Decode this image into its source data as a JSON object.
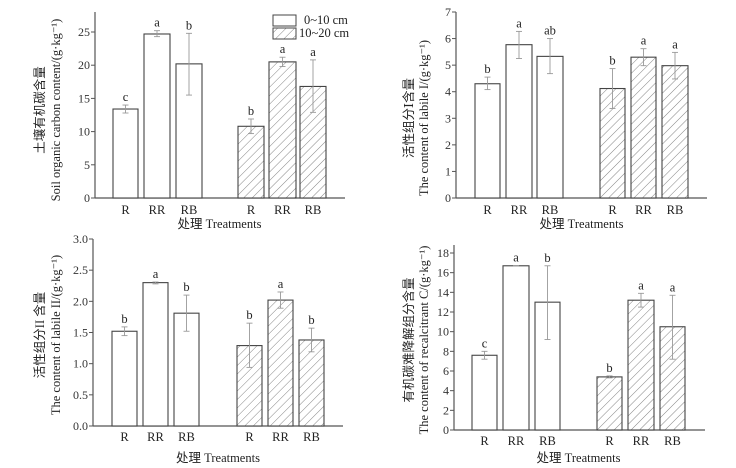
{
  "legend": {
    "items": [
      {
        "label": "0~10 cm",
        "pattern": "solid"
      },
      {
        "label": "10~20 cm",
        "pattern": "hatched"
      }
    ],
    "placement": "top-right of first chart"
  },
  "chart_data": [
    {
      "type": "bar",
      "title": "",
      "ylabel_cn": "土壤有机碳含量",
      "ylabel": "Soil organic carbon content/(g·kg⁻¹)",
      "xlabel": "处理 Treatments",
      "categories": [
        "R",
        "RR",
        "RB"
      ],
      "ylim": [
        0,
        28
      ],
      "yticks": [
        0,
        5,
        10,
        15,
        20,
        25
      ],
      "ytick_labels": [
        "0",
        "5",
        "10",
        "15",
        "20",
        "25"
      ],
      "series": [
        {
          "name": "0~10 cm",
          "values": [
            13.4,
            24.7,
            20.2
          ],
          "err_low": [
            12.8,
            24.3,
            15.5
          ],
          "err_high": [
            14.0,
            25.2,
            24.8
          ],
          "sig": [
            "c",
            "a",
            "b"
          ]
        },
        {
          "name": "10~20 cm",
          "values": [
            10.8,
            20.5,
            16.8
          ],
          "err_low": [
            9.7,
            19.8,
            12.9
          ],
          "err_high": [
            11.9,
            21.2,
            20.8
          ],
          "sig": [
            "b",
            "a",
            "a"
          ]
        }
      ],
      "grid": false
    },
    {
      "type": "bar",
      "title": "",
      "ylabel_cn": "活性组分Ⅰ含量",
      "ylabel": "The content of labile I/(g·kg⁻¹)",
      "xlabel": "处理 Treatments",
      "categories": [
        "R",
        "RR",
        "RB"
      ],
      "ylim": [
        0,
        7
      ],
      "yticks": [
        0,
        1,
        2,
        3,
        4,
        5,
        6,
        7
      ],
      "ytick_labels": [
        "0",
        "1",
        "2",
        "3",
        "4",
        "5",
        "6",
        "7"
      ],
      "series": [
        {
          "name": "0~10 cm",
          "values": [
            4.3,
            5.77,
            5.33
          ],
          "err_low": [
            4.08,
            5.25,
            4.68
          ],
          "err_high": [
            4.55,
            6.27,
            6.0
          ],
          "sig": [
            "b",
            "a",
            "ab"
          ]
        },
        {
          "name": "10~20 cm",
          "values": [
            4.12,
            5.3,
            4.98
          ],
          "err_low": [
            3.37,
            4.98,
            4.48
          ],
          "err_high": [
            4.87,
            5.62,
            5.48
          ],
          "sig": [
            "b",
            "a",
            "a"
          ]
        }
      ],
      "grid": false
    },
    {
      "type": "bar",
      "title": "",
      "ylabel_cn": "活性组分II 含量",
      "ylabel": "The content of  labile II/(g·kg⁻¹)",
      "xlabel": "处理 Treatments",
      "categories": [
        "R",
        "RR",
        "RB"
      ],
      "ylim": [
        0,
        3.0
      ],
      "yticks": [
        0,
        0.5,
        1.0,
        1.5,
        2.0,
        2.5,
        3.0
      ],
      "ytick_labels": [
        "0.0",
        "0.5",
        "1.0",
        "1.5",
        "2.0",
        "2.5",
        "3.0"
      ],
      "series": [
        {
          "name": "0~10 cm",
          "values": [
            1.52,
            2.3,
            1.81
          ],
          "err_low": [
            1.45,
            2.28,
            1.52
          ],
          "err_high": [
            1.59,
            2.31,
            2.1
          ],
          "sig": [
            "b",
            "a",
            "b"
          ]
        },
        {
          "name": "10~20 cm",
          "values": [
            1.29,
            2.02,
            1.38
          ],
          "err_low": [
            0.94,
            1.89,
            1.19
          ],
          "err_high": [
            1.65,
            2.15,
            1.57
          ],
          "sig": [
            "b",
            "a",
            "b"
          ]
        }
      ],
      "grid": false
    },
    {
      "type": "bar",
      "title": "",
      "ylabel_cn": "有机碳难降解组分含量",
      "ylabel": "The content of recalcitrant C/(g·kg⁻¹)",
      "xlabel": "处理 Treatments",
      "categories": [
        "R",
        "RR",
        "RB"
      ],
      "ylim": [
        0,
        19
      ],
      "yticks": [
        0,
        2,
        4,
        6,
        8,
        10,
        12,
        14,
        16,
        18
      ],
      "ytick_labels": [
        "0",
        "2",
        "4",
        "6",
        "8",
        "10",
        "12",
        "14",
        "16",
        "18"
      ],
      "series": [
        {
          "name": "0~10 cm",
          "values": [
            7.6,
            16.7,
            13.0
          ],
          "err_low": [
            7.2,
            16.68,
            9.2
          ],
          "err_high": [
            8.0,
            16.72,
            16.7
          ],
          "sig": [
            "c",
            "a",
            "b"
          ]
        },
        {
          "name": "10~20 cm",
          "values": [
            5.4,
            13.2,
            10.5
          ],
          "err_low": [
            5.3,
            12.5,
            7.2
          ],
          "err_high": [
            5.5,
            13.9,
            13.7
          ],
          "sig": [
            "b",
            "a",
            "a"
          ]
        }
      ],
      "grid": false
    }
  ]
}
